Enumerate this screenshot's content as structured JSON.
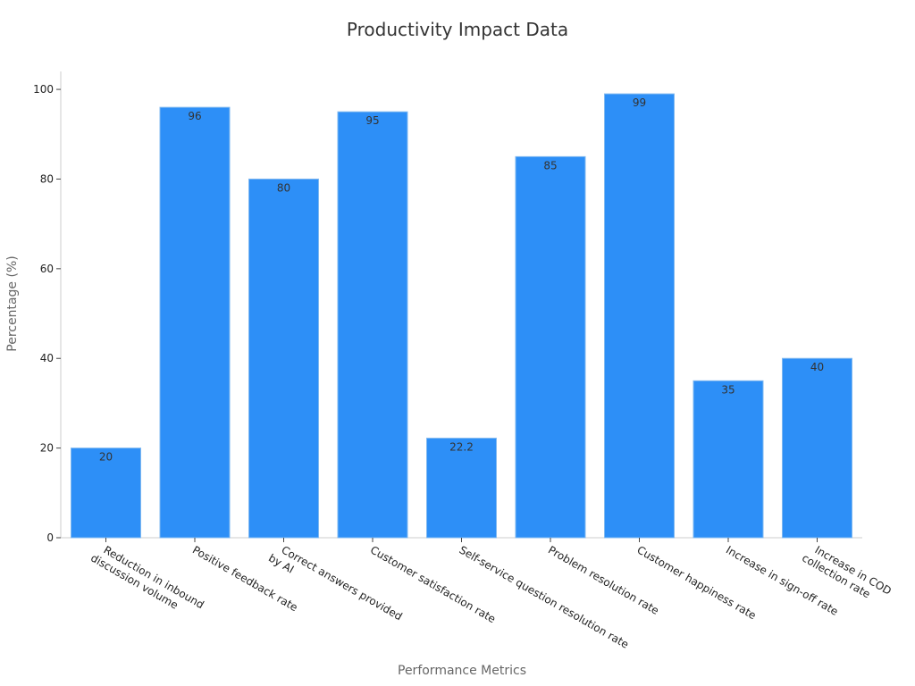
{
  "chart_data": {
    "type": "bar",
    "title": "Productivity Impact Data",
    "xlabel": "Performance Metrics",
    "ylabel": "Percentage (%)",
    "ylim": [
      0,
      104
    ],
    "yticks": [
      0,
      20,
      40,
      60,
      80,
      100
    ],
    "grid": false,
    "bar_color": "#2d8ff7",
    "categories": [
      [
        "Reduction in inbound",
        "discussion volume"
      ],
      [
        "Positive feedback rate"
      ],
      [
        "Correct answers provided",
        "by AI"
      ],
      [
        "Customer satisfaction rate"
      ],
      [
        "Self-service question resolution rate"
      ],
      [
        "Problem resolution rate"
      ],
      [
        "Customer happiness rate"
      ],
      [
        "Increase in sign-off rate"
      ],
      [
        "Increase in COD",
        "collection rate"
      ]
    ],
    "values": [
      20,
      96,
      80,
      95,
      22.2,
      85,
      99,
      35,
      40
    ],
    "data_labels": [
      "20",
      "96",
      "80",
      "95",
      "22.2",
      "85",
      "99",
      "35",
      "40"
    ]
  }
}
